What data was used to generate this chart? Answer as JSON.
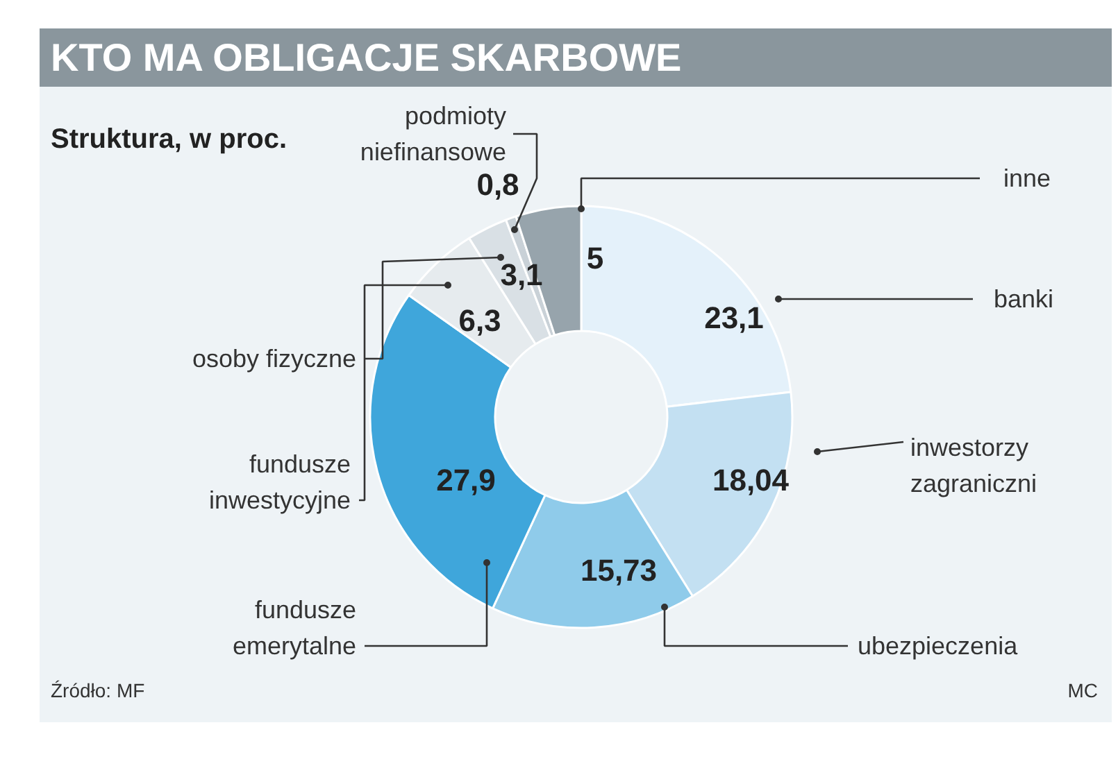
{
  "chart_data": {
    "type": "donut",
    "title": "KTO MA OBLIGACJE SKARBOWE",
    "subtitle": "Struktura, w proc.",
    "categories": [
      "banki",
      "inwestorzy zagraniczni",
      "ubezpieczenia",
      "fundusze emerytalne",
      "fundusze inwestycyjne",
      "osoby fizyczne",
      "podmioty niefinansowe",
      "inne"
    ],
    "values": [
      23.1,
      18.04,
      15.73,
      27.9,
      6.3,
      3.1,
      0.8,
      5
    ],
    "value_labels": [
      "23,1",
      "18,04",
      "15,73",
      "27,9",
      "6,3",
      "3,1",
      "0,8",
      "5"
    ],
    "colors": [
      "#e4f1fa",
      "#c3e0f2",
      "#8fcbea",
      "#3fa6db",
      "#e6ebee",
      "#d9e0e5",
      "#c9d1d7",
      "#97a4ac"
    ],
    "annotations": [
      "Źródło: MF",
      "MC"
    ]
  }
}
